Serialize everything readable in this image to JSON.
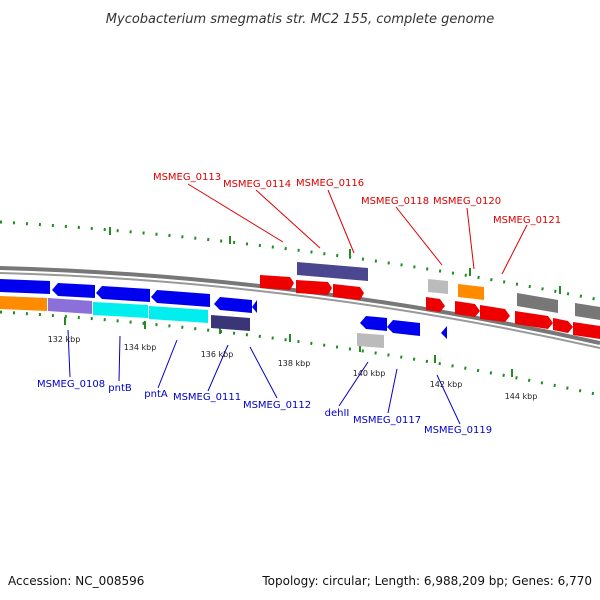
{
  "title": "Mycobacterium smegmatis str. MC2 155, complete genome",
  "footer": {
    "accession": "Accession: NC_008596",
    "summary": "Topology: circular; Length: 6,988,209 bp; Genes: 6,770"
  },
  "colors": {
    "red": "#ee0000",
    "blue": "#0000ee",
    "navy": "#3a3577",
    "slate": "#4b4690",
    "cyan": "#00eeee",
    "orange": "#ff8c00",
    "purple": "#8a70d8",
    "gray": "#777777",
    "lightgray": "#bbbbbb",
    "tick": "#228b22",
    "label_top": "#dd0000",
    "label_bottom": "#0000cc"
  },
  "scale_ticks": [
    "132 kbp",
    "134 kbp",
    "136 kbp",
    "138 kbp",
    "140 kbp",
    "142 kbp",
    "144 kbp"
  ],
  "gene_labels_top": [
    "MSMEG_0113",
    "MSMEG_0114",
    "MSMEG_0116",
    "MSMEG_0118",
    "MSMEG_0120",
    "MSMEG_0121"
  ],
  "gene_labels_bottom": [
    "MSMEG_0108",
    "pntB",
    "pntA",
    "MSMEG_0111",
    "MSMEG_0112",
    "dehII",
    "MSMEG_0117",
    "MSMEG_0119"
  ]
}
